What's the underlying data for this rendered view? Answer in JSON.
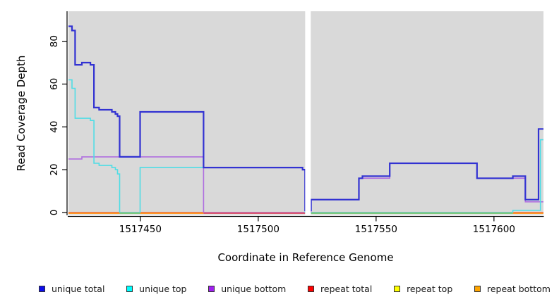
{
  "chart_data": {
    "type": "line",
    "subtype": "step-coverage-plot",
    "title": "",
    "xlabel": "Coordinate in Reference Genome",
    "ylabel": "Read Coverage Depth",
    "xlim": [
      1517419.5,
      1517621
    ],
    "ylim": [
      0,
      94
    ],
    "x_ticks": [
      1517450,
      1517500,
      1517550,
      1517600
    ],
    "y_ticks": [
      0,
      20,
      40,
      60,
      80
    ],
    "grid": false,
    "plot_background": "#d9d9d9",
    "axis_color": "#000000",
    "no_data_gap_x": [
      1517519.9,
      1517522.3
    ],
    "series": [
      {
        "name": "unique total",
        "line_color": "#3232d2",
        "line_width": 2.2,
        "points": [
          [
            1517419.5,
            87
          ],
          [
            1517421,
            85
          ],
          [
            1517422.3,
            69
          ],
          [
            1517425.2,
            70
          ],
          [
            1517428.8,
            69
          ],
          [
            1517430.3,
            49
          ],
          [
            1517432.5,
            48
          ],
          [
            1517437.9,
            47
          ],
          [
            1517439.4,
            46
          ],
          [
            1517440.3,
            45
          ],
          [
            1517441.2,
            26
          ],
          [
            1517449.9,
            47
          ],
          [
            1517476.8,
            21
          ],
          [
            1517518.8,
            20
          ],
          [
            1517519.9,
            1
          ],
          [
            1517522.4,
            6
          ],
          [
            1517542.7,
            16
          ],
          [
            1517544.2,
            17
          ],
          [
            1517555.8,
            23
          ],
          [
            1517592.8,
            16
          ],
          [
            1517608,
            17
          ],
          [
            1517613.3,
            6
          ],
          [
            1517618.9,
            39
          ]
        ]
      },
      {
        "name": "unique top",
        "line_color": "#4fdde5",
        "line_width": 1.6,
        "points": [
          [
            1517419.5,
            62
          ],
          [
            1517421,
            58
          ],
          [
            1517422.3,
            44
          ],
          [
            1517428.8,
            43
          ],
          [
            1517430.3,
            23
          ],
          [
            1517432.5,
            22
          ],
          [
            1517437.9,
            21
          ],
          [
            1517439.4,
            20
          ],
          [
            1517440.3,
            18
          ],
          [
            1517441.2,
            0
          ],
          [
            1517449.9,
            21
          ],
          [
            1517518.8,
            20
          ],
          [
            1517519.9,
            0
          ],
          [
            1517608,
            1
          ],
          [
            1517619.7,
            34
          ]
        ]
      },
      {
        "name": "unique bottom",
        "line_color": "#b06fe0",
        "line_width": 1.6,
        "points": [
          [
            1517419.5,
            25
          ],
          [
            1517425.2,
            26
          ],
          [
            1517476.8,
            0
          ],
          [
            1517522.4,
            6
          ],
          [
            1517542.7,
            16
          ],
          [
            1517555.8,
            23
          ],
          [
            1517592.8,
            16
          ],
          [
            1517613.3,
            5
          ]
        ]
      },
      {
        "name": "repeat total",
        "line_color": "#d95970",
        "line_width": 1.6,
        "points": [
          [
            1517419.5,
            0
          ]
        ]
      },
      {
        "name": "repeat top",
        "line_color": "#f5e642",
        "line_width": 1.6,
        "points": [
          [
            1517419.5,
            0
          ]
        ]
      },
      {
        "name": "repeat bottom",
        "line_color": "#ff9726",
        "line_width": 2,
        "points": [
          [
            1517419.5,
            0
          ]
        ]
      }
    ],
    "baseline_segments": [
      {
        "x": [
          1517419.5,
          1517441.2
        ],
        "color": "#ff9726"
      },
      {
        "x": [
          1517441.2,
          1517449.9
        ],
        "color": "#7cc87c"
      },
      {
        "x": [
          1517449.9,
          1517476.8
        ],
        "color": "#ff9726"
      },
      {
        "x": [
          1517476.8,
          1517519.9
        ],
        "color": "#d95970"
      },
      {
        "x": [
          1517522.4,
          1517608.0
        ],
        "color": "#7cc87c"
      },
      {
        "x": [
          1517608.0,
          1517621.0
        ],
        "color": "#ff9726"
      }
    ]
  },
  "legend": {
    "items": [
      {
        "label": "unique total",
        "color": "#0d0dec"
      },
      {
        "label": "unique top",
        "color": "#00ffff"
      },
      {
        "label": "unique bottom",
        "color": "#a020f0"
      },
      {
        "label": "repeat total",
        "color": "#ff0000"
      },
      {
        "label": "repeat top",
        "color": "#ffff00"
      },
      {
        "label": "repeat bottom",
        "color": "#ffa500"
      }
    ]
  }
}
